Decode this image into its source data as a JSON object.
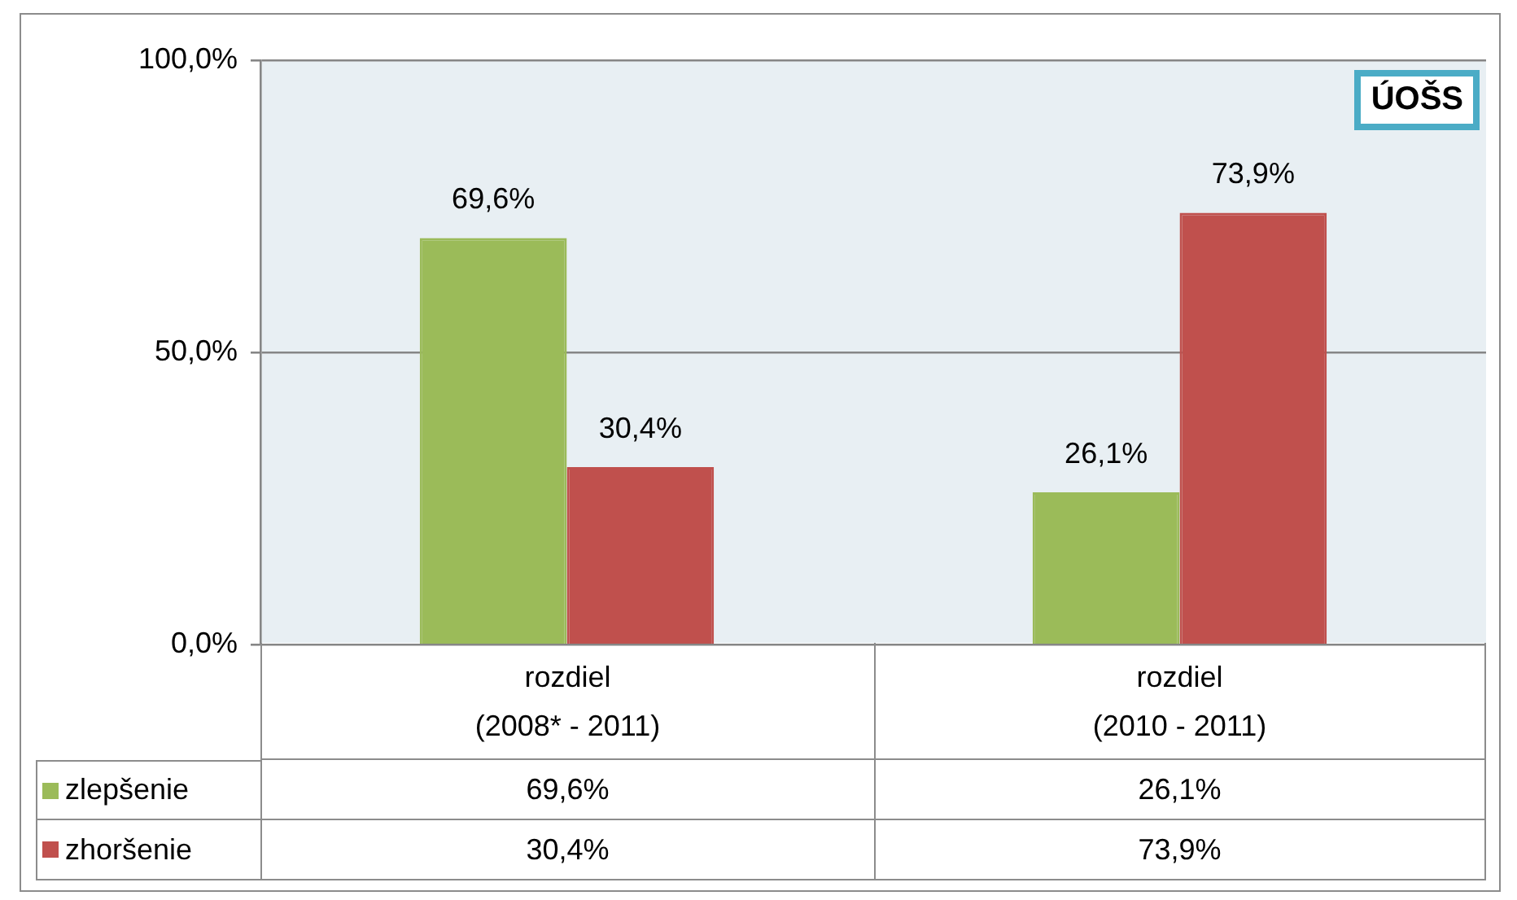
{
  "chart_data": {
    "type": "bar",
    "categories": [
      "rozdiel\n(2008* - 2011)",
      "rozdiel\n(2010 - 2011)"
    ],
    "series": [
      {
        "name": "zlepšenie",
        "color": "#9bbb59",
        "values": [
          69.6,
          26.1
        ],
        "value_labels": [
          "69,6%",
          "26,1%"
        ]
      },
      {
        "name": "zhoršenie",
        "color": "#c0504d",
        "values": [
          30.4,
          73.9
        ],
        "value_labels": [
          "30,4%",
          "73,9%"
        ]
      }
    ],
    "ylim": [
      0,
      100
    ],
    "yticks": [
      {
        "value": 0,
        "label": "0,0%"
      },
      {
        "value": 50,
        "label": "50,0%"
      },
      {
        "value": 100,
        "label": "100,0%"
      }
    ],
    "grid": "y",
    "legend": "bottom left",
    "annotations": [
      "ÚOŠS"
    ]
  }
}
